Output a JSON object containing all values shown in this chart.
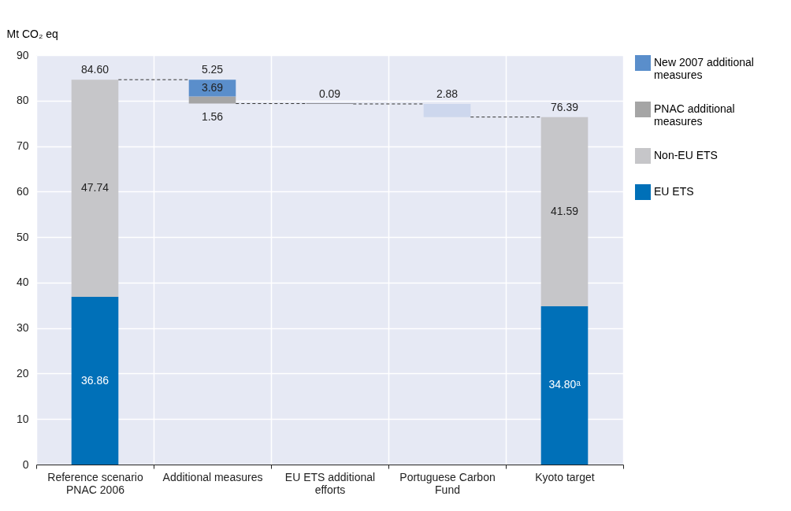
{
  "chart_data": {
    "type": "bar",
    "stacked": true,
    "ylabel": "Mt CO₂ eq",
    "categories": [
      "Reference scenario PNAC 2006",
      "Additional measures",
      "EU ETS additional efforts",
      "Portuguese Carbon Fund",
      "Kyoto target"
    ],
    "series": [
      {
        "name": "EU ETS",
        "color": "#0070b8",
        "base": [
          0,
          null,
          null,
          null,
          0
        ],
        "values": [
          36.86,
          null,
          null,
          null,
          34.8
        ],
        "value_labels": [
          "36.86",
          null,
          null,
          null,
          "34.80ᵃ"
        ]
      },
      {
        "name": "Non-EU ETS",
        "color": "#c6c6c9",
        "values": [
          47.74,
          null,
          null,
          null,
          41.59
        ],
        "value_labels": [
          "47.74",
          null,
          null,
          null,
          "41.59"
        ]
      },
      {
        "name": "PNAC additional measures",
        "color": "#a5a5a5",
        "base": [
          null,
          79.35,
          null,
          null,
          null
        ],
        "values": [
          null,
          1.56,
          null,
          null,
          null
        ],
        "value_labels": [
          null,
          "1.56",
          null,
          null,
          null
        ]
      },
      {
        "name": "New 2007 additional measures",
        "color": "#5a8ecb",
        "base": [
          null,
          80.91,
          null,
          null,
          null
        ],
        "values": [
          null,
          3.69,
          null,
          null,
          null
        ],
        "value_labels": [
          null,
          "3.69",
          null,
          null,
          null
        ]
      },
      {
        "color": "#333333",
        "base": [
          null,
          null,
          79.26,
          null,
          null
        ],
        "values": [
          null,
          null,
          0.09,
          null,
          null
        ],
        "value_labels": [
          null,
          null,
          "0.09",
          null,
          null
        ]
      },
      {
        "color": "#cdd7ed",
        "base": [
          null,
          null,
          null,
          76.39,
          null
        ],
        "values": [
          null,
          null,
          null,
          2.88,
          null
        ],
        "value_labels": [
          null,
          null,
          null,
          "2.88",
          null
        ]
      }
    ],
    "totals": [
      "84.60",
      "5.25",
      null,
      null,
      "76.39"
    ],
    "ylim": [
      0,
      90
    ],
    "yticks": [
      0,
      10,
      20,
      30,
      40,
      50,
      60,
      70,
      80,
      90
    ],
    "grid": true,
    "legend": "right"
  }
}
